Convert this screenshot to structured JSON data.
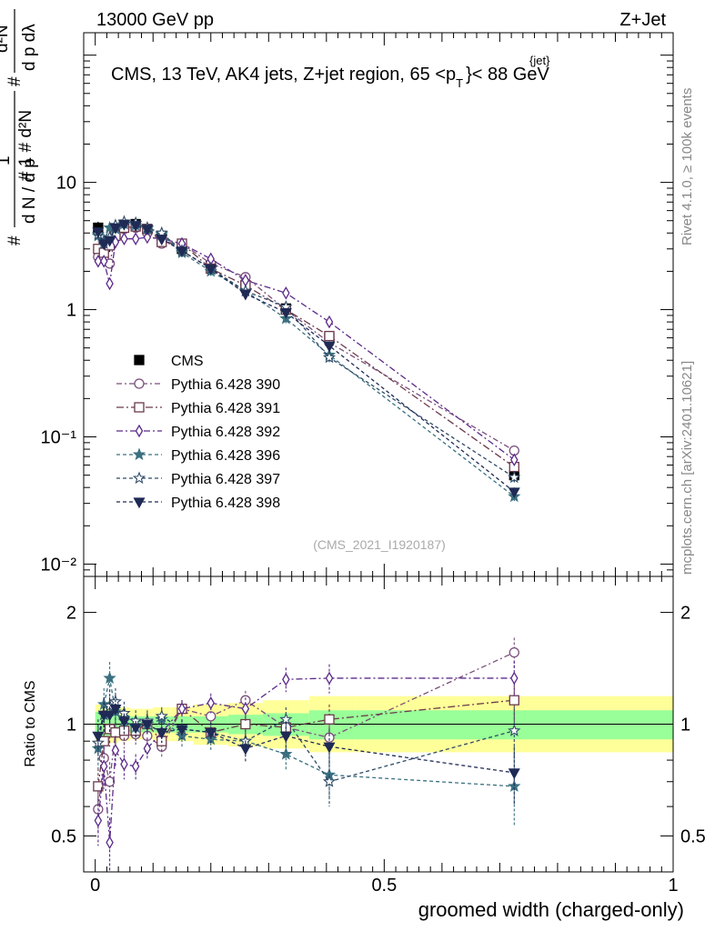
{
  "header": {
    "left": "13000 GeV pp",
    "right": "Z+Jet",
    "plot_title_main": "CMS, 13 TeV, AK4 jets, Z+jet region, 65 <p",
    "plot_title_sup": "{jet}",
    "plot_title_sub": "T",
    "plot_title_end": "}< 88 GeV",
    "analysis_id": "(CMS_2021_I1920187)",
    "rivet_label": "Rivet 4.1.0, ≥ 100k events",
    "mcplots_label": "mcplots.cern.ch [arXiv:2401.10621]"
  },
  "chart_data": [
    {
      "type": "scatter",
      "panel": "main",
      "yscale": "log",
      "xlim": [
        -0.02,
        1.0
      ],
      "ylim": [
        0.008,
        150
      ],
      "ylabel": "1/(dN/dp_T) d²N/(dp_T dλ)",
      "y_ticks": [
        {
          "value": 0.01,
          "label": "10⁻²"
        },
        {
          "value": 0.1,
          "label": "10⁻¹"
        },
        {
          "value": 1,
          "label": "1"
        },
        {
          "value": 10,
          "label": "10"
        }
      ],
      "x": [
        0.005,
        0.015,
        0.025,
        0.035,
        0.05,
        0.07,
        0.09,
        0.115,
        0.15,
        0.2,
        0.26,
        0.33,
        0.405,
        0.725
      ],
      "series": [
        {
          "name": "CMS",
          "color": "#000000",
          "marker": "square",
          "dash": "",
          "values": [
            4.4,
            3.1,
            3.3,
            4.0,
            4.6,
            4.7,
            4.3,
            3.8,
            3.0,
            2.2,
            1.55,
            1.02,
            0.6,
            0.05
          ],
          "errors": [
            0.5,
            0.45,
            0.45,
            0.5,
            0.5,
            0.5,
            0.45,
            0.4,
            0.3,
            0.22,
            0.16,
            0.1,
            0.07,
            0.006
          ]
        },
        {
          "name": "Pythia 6.428 390",
          "color": "#7a4f7a",
          "marker": "circle-open",
          "dash": "6,3,2,3",
          "values": [
            2.6,
            2.5,
            2.3,
            3.8,
            4.3,
            4.4,
            4.0,
            3.3,
            3.3,
            2.3,
            1.8,
            1.0,
            0.55,
            0.078
          ]
        },
        {
          "name": "Pythia 6.428 391",
          "color": "#6b3a4a",
          "marker": "square-open",
          "dash": "8,3,2,3",
          "values": [
            3.0,
            2.8,
            3.2,
            3.8,
            4.4,
            4.5,
            4.3,
            3.4,
            3.3,
            2.1,
            1.55,
            1.0,
            0.62,
            0.058
          ]
        },
        {
          "name": "Pythia 6.428 392",
          "color": "#5b2a8a",
          "marker": "diamond-open",
          "dash": "7,3,2,3",
          "values": [
            2.4,
            2.4,
            1.6,
            3.4,
            3.6,
            3.6,
            3.7,
            3.6,
            3.3,
            2.5,
            1.7,
            1.35,
            0.8,
            0.066
          ]
        },
        {
          "name": "Pythia 6.428 396",
          "color": "#3a7080",
          "marker": "star",
          "dash": "4,3",
          "values": [
            3.8,
            3.5,
            4.4,
            4.3,
            4.7,
            4.6,
            4.3,
            3.9,
            2.8,
            2.0,
            1.4,
            0.85,
            0.44,
            0.034
          ]
        },
        {
          "name": "Pythia 6.428 397",
          "color": "#2e4a66",
          "marker": "star-open",
          "dash": "4,3",
          "values": [
            3.9,
            3.3,
            3.7,
            4.6,
            4.9,
            4.8,
            4.4,
            4.0,
            2.9,
            2.1,
            1.4,
            1.05,
            0.42,
            0.048
          ]
        },
        {
          "name": "Pythia 6.428 398",
          "color": "#1f2a55",
          "marker": "triangle-down",
          "dash": "4,3",
          "values": [
            4.1,
            3.3,
            3.5,
            4.4,
            4.7,
            4.6,
            4.3,
            3.6,
            2.9,
            2.1,
            1.33,
            0.95,
            0.52,
            0.037
          ]
        }
      ]
    },
    {
      "type": "scatter",
      "panel": "ratio",
      "yscale": "log",
      "xlim": [
        -0.02,
        1.0
      ],
      "ylim": [
        0.4,
        2.5
      ],
      "xlabel": "groomed width (charged-only)",
      "ylabel": "Ratio to CMS",
      "x_ticks": [
        {
          "value": 0,
          "label": "0"
        },
        {
          "value": 0.5,
          "label": "0.5"
        },
        {
          "value": 1,
          "label": "1"
        }
      ],
      "y_ticks": [
        {
          "value": 0.5,
          "label": "0.5"
        },
        {
          "value": 1,
          "label": "1"
        },
        {
          "value": 2,
          "label": "2"
        }
      ],
      "x": [
        0.005,
        0.015,
        0.025,
        0.035,
        0.05,
        0.07,
        0.09,
        0.115,
        0.15,
        0.2,
        0.26,
        0.33,
        0.405,
        0.725
      ],
      "bands": {
        "edges": [
          0.0,
          0.01,
          0.02,
          0.03,
          0.04,
          0.06,
          0.08,
          0.1,
          0.13,
          0.17,
          0.23,
          0.29,
          0.37,
          0.45,
          1.0
        ],
        "stat_color": "#99ff99",
        "total_color": "#ffff99",
        "stat_lo": [
          0.92,
          0.92,
          0.93,
          0.93,
          0.94,
          0.95,
          0.95,
          0.95,
          0.95,
          0.95,
          0.94,
          0.93,
          0.91,
          0.91
        ],
        "stat_hi": [
          1.08,
          1.08,
          1.07,
          1.07,
          1.06,
          1.05,
          1.05,
          1.05,
          1.05,
          1.05,
          1.06,
          1.07,
          1.09,
          1.09
        ],
        "total_lo": [
          0.88,
          0.88,
          0.89,
          0.89,
          0.9,
          0.91,
          0.91,
          0.9,
          0.9,
          0.88,
          0.87,
          0.86,
          0.84,
          0.84
        ],
        "total_hi": [
          1.13,
          1.13,
          1.12,
          1.12,
          1.11,
          1.1,
          1.1,
          1.11,
          1.11,
          1.13,
          1.14,
          1.16,
          1.19,
          1.19
        ]
      },
      "series": [
        {
          "name": "Pythia 6.428 390",
          "color": "#7a4f7a",
          "marker": "circle-open",
          "dash": "6,3,2,3",
          "values": [
            0.59,
            0.81,
            0.7,
            0.95,
            0.93,
            0.94,
            0.93,
            0.87,
            1.1,
            1.05,
            1.16,
            0.98,
            0.92,
            1.56
          ],
          "errors": [
            0.08,
            0.1,
            0.09,
            0.08,
            0.07,
            0.06,
            0.06,
            0.06,
            0.06,
            0.06,
            0.07,
            0.08,
            0.1,
            0.15
          ]
        },
        {
          "name": "Pythia 6.428 391",
          "color": "#6b3a4a",
          "marker": "square-open",
          "dash": "8,3,2,3",
          "values": [
            0.68,
            0.9,
            0.97,
            0.95,
            0.96,
            0.96,
            1.0,
            0.9,
            1.1,
            0.95,
            1.0,
            0.98,
            1.03,
            1.16
          ],
          "errors": [
            0.08,
            0.1,
            0.1,
            0.08,
            0.07,
            0.06,
            0.06,
            0.06,
            0.06,
            0.06,
            0.07,
            0.08,
            0.1,
            0.14
          ]
        },
        {
          "name": "Pythia 6.428 392",
          "color": "#5b2a8a",
          "marker": "diamond-open",
          "dash": "7,3,2,3",
          "values": [
            0.55,
            0.77,
            0.48,
            0.85,
            0.78,
            0.77,
            0.86,
            0.95,
            1.1,
            1.14,
            1.1,
            1.32,
            1.33,
            1.33
          ],
          "errors": [
            0.08,
            0.1,
            0.08,
            0.08,
            0.07,
            0.06,
            0.06,
            0.06,
            0.06,
            0.07,
            0.08,
            0.1,
            0.12,
            0.15
          ]
        },
        {
          "name": "Pythia 6.428 396",
          "color": "#3a7080",
          "marker": "star",
          "dash": "4,3",
          "values": [
            0.86,
            1.13,
            1.33,
            1.08,
            1.02,
            0.98,
            1.0,
            1.03,
            0.93,
            0.91,
            0.9,
            0.83,
            0.73,
            0.68
          ],
          "errors": [
            0.1,
            0.12,
            0.14,
            0.1,
            0.08,
            0.07,
            0.07,
            0.06,
            0.06,
            0.06,
            0.07,
            0.08,
            0.1,
            0.15
          ]
        },
        {
          "name": "Pythia 6.428 397",
          "color": "#2e4a66",
          "marker": "star-open",
          "dash": "4,3",
          "values": [
            0.89,
            1.06,
            1.12,
            1.15,
            1.07,
            1.02,
            1.02,
            1.05,
            0.97,
            0.95,
            0.9,
            1.03,
            0.7,
            0.96
          ],
          "errors": [
            0.1,
            0.12,
            0.12,
            0.1,
            0.08,
            0.07,
            0.07,
            0.06,
            0.06,
            0.06,
            0.07,
            0.08,
            0.1,
            0.15
          ]
        },
        {
          "name": "Pythia 6.428 398",
          "color": "#1f2a55",
          "marker": "triangle-down",
          "dash": "4,3",
          "values": [
            0.93,
            1.06,
            1.06,
            1.1,
            1.02,
            0.98,
            1.0,
            0.95,
            0.97,
            0.95,
            0.86,
            0.93,
            0.87,
            0.74
          ],
          "errors": [
            0.1,
            0.12,
            0.12,
            0.1,
            0.08,
            0.07,
            0.07,
            0.06,
            0.06,
            0.06,
            0.07,
            0.08,
            0.1,
            0.13
          ]
        }
      ]
    }
  ]
}
